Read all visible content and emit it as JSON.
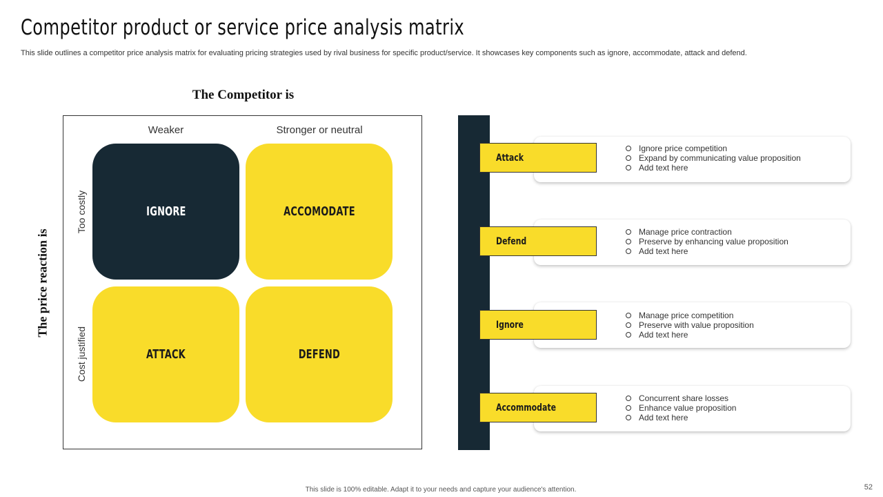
{
  "header": {
    "title": "Competitor product or service price analysis matrix",
    "subtitle": "This slide outlines a competitor price analysis matrix for evaluating pricing strategies used by rival business for specific product/service. It showcases key components such as ignore, accommodate, attack and defend."
  },
  "matrix": {
    "competitor_heading": "The Competitor is",
    "reaction_heading": "The price reaction is",
    "columns": [
      "Weaker",
      "Stronger or neutral"
    ],
    "rows": [
      "Too costly",
      "Cost justified"
    ],
    "quadrants": {
      "top_left": "IGNORE",
      "top_right": "ACCOMODATE",
      "bottom_left": "ATTACK",
      "bottom_right": "DEFEND"
    },
    "colors": {
      "dark": "#172934",
      "yellow": "#f9dc2a"
    }
  },
  "strategies": [
    {
      "label": "Attack",
      "points": [
        "Ignore price competition",
        "Expand by communicating value proposition",
        "Add text here"
      ]
    },
    {
      "label": "Defend",
      "points": [
        "Manage price contraction",
        "Preserve by enhancing value proposition",
        "Add text here"
      ]
    },
    {
      "label": "Ignore",
      "points": [
        "Manage price competition",
        "Preserve with value proposition",
        "Add text here"
      ]
    },
    {
      "label": "Accommodate",
      "points": [
        "Concurrent share losses",
        "Enhance value proposition",
        "Add text here"
      ]
    }
  ],
  "footer": {
    "note": "This slide is 100% editable. Adapt it to your needs and capture your audience's attention.",
    "page_number": "52"
  }
}
